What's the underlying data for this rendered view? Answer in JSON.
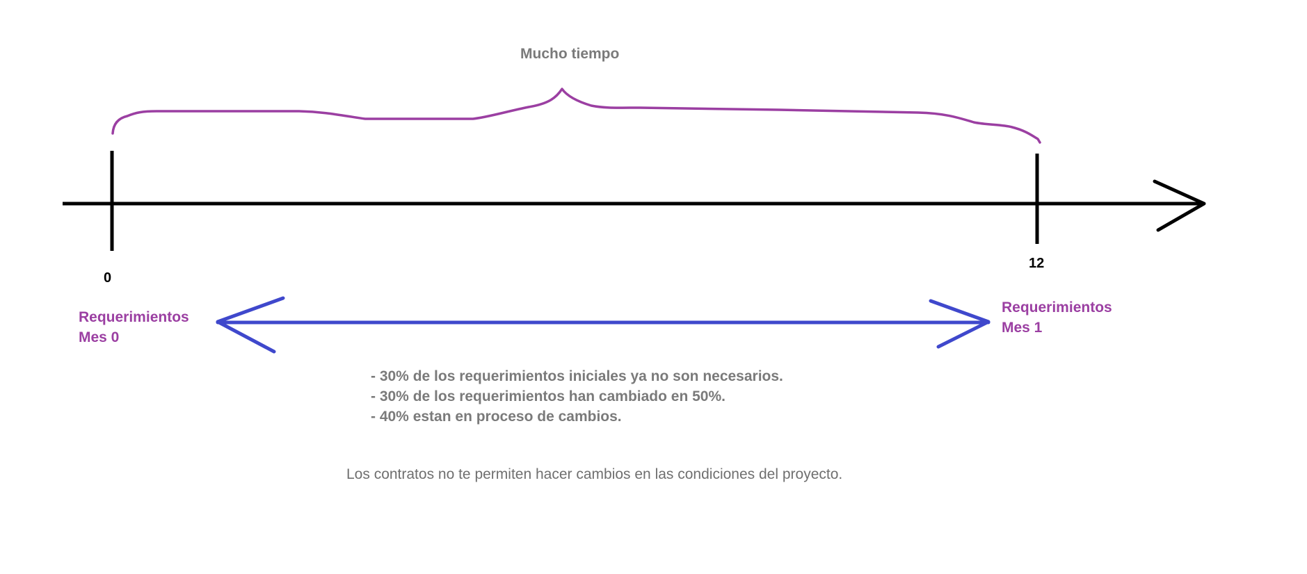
{
  "top_label": "Mucho tiempo",
  "timeline": {
    "start_tick": "0",
    "end_tick": "12"
  },
  "left_label": {
    "line1": "Requerimientos",
    "line2": "Mes 0"
  },
  "right_label": {
    "line1": "Requerimientos",
    "line2": "Mes 1"
  },
  "bullets": [
    "- 30% de los requerimientos iniciales ya no son necesarios.",
    "- 30% de los requerimientos han cambiado en 50%.",
    "- 40% estan en proceso de cambios."
  ],
  "note": "Los contratos no te permiten hacer cambios en las condiciones del proyecto.",
  "colors": {
    "brace": "#9b3fa2",
    "axis": "#000000",
    "range_arrow": "#3f48cc",
    "purple_text": "#9b3fa2",
    "gray_text": "#7a7a7a"
  }
}
